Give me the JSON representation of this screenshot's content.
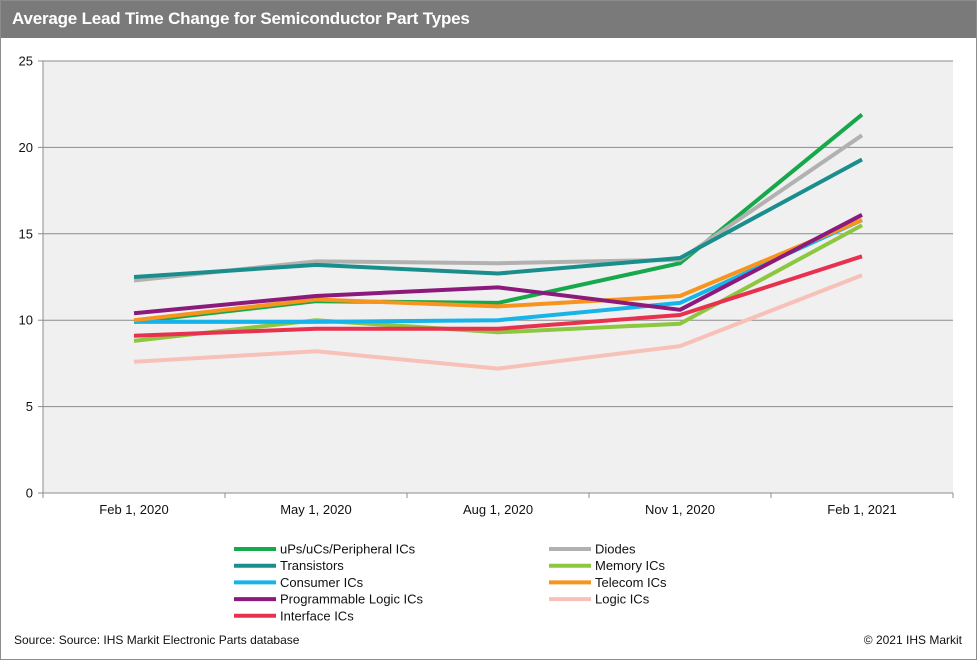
{
  "header": {
    "title": "Average Lead Time Change for Semiconductor Part Types"
  },
  "footer": {
    "source": "Source: Source: IHS Markit Electronic Parts database",
    "copyright": "© 2021 IHS Markit"
  },
  "colors": {
    "title_bar": "#7a7a7a",
    "plot_background": "#f0f0f0",
    "gridline": "#8c8c8c"
  },
  "chart_data": {
    "type": "line",
    "title": "Average Lead Time Change for Semiconductor Part Types",
    "xlabel": "",
    "ylabel": "",
    "categories": [
      "Feb 1, 2020",
      "May 1, 2020",
      "Aug 1, 2020",
      "Nov 1, 2020",
      "Feb 1, 2021"
    ],
    "ylim": [
      0,
      25
    ],
    "yticks": [
      0,
      5,
      10,
      15,
      20,
      25
    ],
    "grid": true,
    "legend_position": "bottom",
    "series": [
      {
        "name": "uPs/uCs/Peripheral ICs",
        "color": "#16a84a",
        "values": [
          9.9,
          11.1,
          11.0,
          13.3,
          21.9
        ]
      },
      {
        "name": "Diodes",
        "color": "#b1b1b1",
        "values": [
          12.3,
          13.4,
          13.3,
          13.5,
          20.7
        ]
      },
      {
        "name": "Transistors",
        "color": "#1a8d8d",
        "values": [
          12.5,
          13.2,
          12.7,
          13.6,
          19.3
        ]
      },
      {
        "name": "Memory ICs",
        "color": "#8dc63f",
        "values": [
          8.8,
          10.0,
          9.3,
          9.8,
          15.5
        ]
      },
      {
        "name": "Consumer ICs",
        "color": "#17b4e9",
        "values": [
          9.9,
          9.9,
          10.0,
          11.0,
          15.8
        ]
      },
      {
        "name": "Telecom ICs",
        "color": "#f7941d",
        "values": [
          10.0,
          11.2,
          10.8,
          11.4,
          15.8
        ]
      },
      {
        "name": "Programmable Logic ICs",
        "color": "#8b1a7c",
        "values": [
          10.4,
          11.4,
          11.9,
          10.6,
          16.1
        ]
      },
      {
        "name": "Logic ICs",
        "color": "#f8c1b8",
        "values": [
          7.6,
          8.2,
          7.2,
          8.5,
          12.6
        ]
      },
      {
        "name": "Interface ICs",
        "color": "#e8314f",
        "values": [
          9.1,
          9.5,
          9.5,
          10.3,
          13.7
        ]
      }
    ]
  }
}
